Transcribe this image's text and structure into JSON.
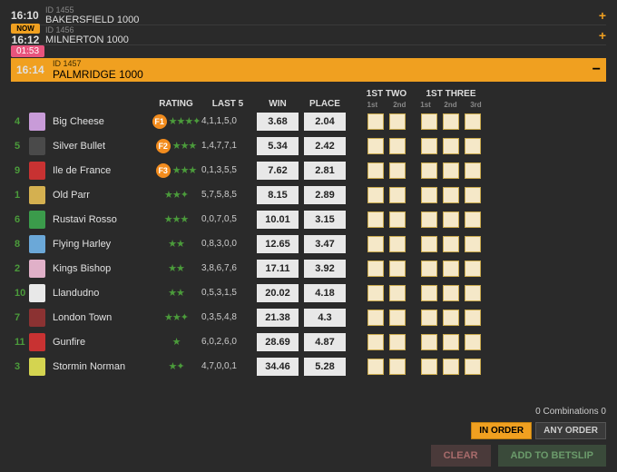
{
  "races": [
    {
      "time": "16:10",
      "id": "ID 1455",
      "name": "BAKERSFIELD 1000",
      "badge": null
    },
    {
      "time": "16:12",
      "id": "ID 1456",
      "name": "MILNERTON 1000",
      "badge": "NOW"
    }
  ],
  "active_race": {
    "time": "16:14",
    "countdown": "01:53",
    "id": "ID 1457",
    "name": "PALMRIDGE 1000"
  },
  "headers": {
    "rating": "RATING",
    "last5": "LAST 5",
    "win": "WIN",
    "place": "PLACE",
    "first2": "1ST TWO",
    "first3": "1ST THREE",
    "sub2_1": "1st",
    "sub2_2": "2nd",
    "sub3_1": "1st",
    "sub3_2": "2nd",
    "sub3_3": "3rd"
  },
  "runners": [
    {
      "num": "4",
      "silk": "#c89bd8",
      "name": "Big Cheese",
      "fav": "F1",
      "stars": "★★★✦",
      "last5": "4,1,1,5,0",
      "win": "3.68",
      "place": "2.04"
    },
    {
      "num": "5",
      "silk": "#4a4a4a",
      "name": "Silver Bullet",
      "fav": "F2",
      "stars": "★★★",
      "last5": "1,4,7,7,1",
      "win": "5.34",
      "place": "2.42"
    },
    {
      "num": "9",
      "silk": "#c83232",
      "name": "Ile de France",
      "fav": "F3",
      "stars": "★★★",
      "last5": "0,1,3,5,5",
      "win": "7.62",
      "place": "2.81"
    },
    {
      "num": "1",
      "silk": "#d4b050",
      "name": "Old Parr",
      "fav": null,
      "stars": "★★✦",
      "last5": "5,7,5,8,5",
      "win": "8.15",
      "place": "2.89"
    },
    {
      "num": "6",
      "silk": "#3b9b4b",
      "name": "Rustavi Rosso",
      "fav": null,
      "stars": "★★★",
      "last5": "0,0,7,0,5",
      "win": "10.01",
      "place": "3.15"
    },
    {
      "num": "8",
      "silk": "#6ba8d8",
      "name": "Flying Harley",
      "fav": null,
      "stars": "★★",
      "last5": "0,8,3,0,0",
      "win": "12.65",
      "place": "3.47"
    },
    {
      "num": "2",
      "silk": "#e0b0c8",
      "name": "Kings Bishop",
      "fav": null,
      "stars": "★★",
      "last5": "3,8,6,7,6",
      "win": "17.11",
      "place": "3.92"
    },
    {
      "num": "10",
      "silk": "#e8e8e8",
      "name": "Llandudno",
      "fav": null,
      "stars": "★★",
      "last5": "0,5,3,1,5",
      "win": "20.02",
      "place": "4.18"
    },
    {
      "num": "7",
      "silk": "#8b3232",
      "name": "London Town",
      "fav": null,
      "stars": "★★✦",
      "last5": "0,3,5,4,8",
      "win": "21.38",
      "place": "4.3"
    },
    {
      "num": "11",
      "silk": "#c83232",
      "name": "Gunfire",
      "fav": null,
      "stars": "★",
      "last5": "6,0,2,6,0",
      "win": "28.69",
      "place": "4.87"
    },
    {
      "num": "3",
      "silk": "#d4d450",
      "name": "Stormin Norman",
      "fav": null,
      "stars": "★✦",
      "last5": "4,7,0,0,1",
      "win": "34.46",
      "place": "5.28"
    }
  ],
  "footer": {
    "combos": "0 Combinations 0",
    "in_order": "IN ORDER",
    "any_order": "ANY ORDER",
    "clear": "CLEAR",
    "add": "ADD TO BETSLIP"
  }
}
